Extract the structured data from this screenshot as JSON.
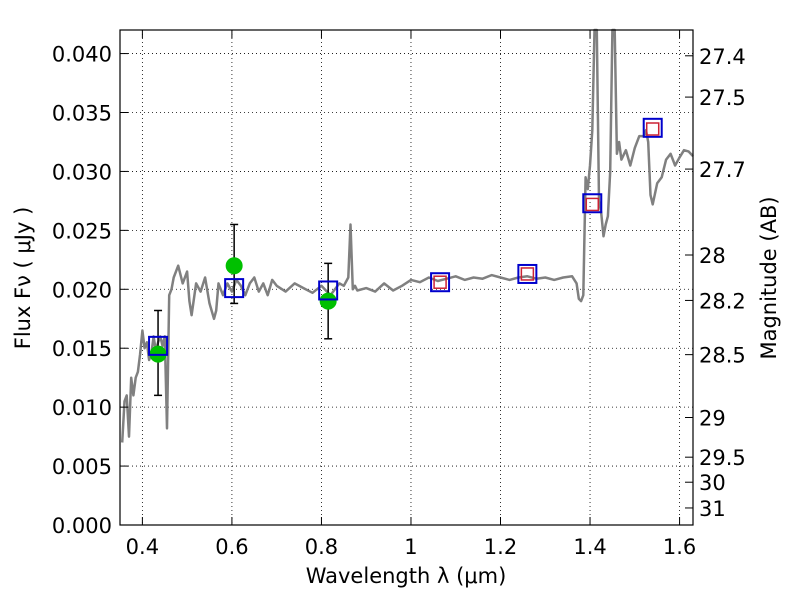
{
  "chart_data": {
    "type": "line",
    "xlabel": "Wavelength  λ (μm)",
    "ylabel": "Flux  Fν  ( μJy )",
    "y2label": "Magnitude (AB)",
    "xlim": [
      0.35,
      1.63
    ],
    "ylim": [
      0.0,
      0.042
    ],
    "grid": true,
    "x_ticks": [
      0.4,
      0.6,
      0.8,
      1.0,
      1.2,
      1.4,
      1.6
    ],
    "x_tick_labels": [
      "0.4",
      "0.6",
      "0.8",
      "1",
      "1.2",
      "1.4",
      "1.6"
    ],
    "y_ticks": [
      0.0,
      0.005,
      0.01,
      0.015,
      0.02,
      0.025,
      0.03,
      0.035,
      0.04
    ],
    "y_tick_labels": [
      "0.000",
      "0.005",
      "0.010",
      "0.015",
      "0.020",
      "0.025",
      "0.030",
      "0.035",
      "0.040"
    ],
    "y2_ticks": [
      {
        "mag": 27.4,
        "label": "27.4"
      },
      {
        "mag": 27.5,
        "label": "27.5"
      },
      {
        "mag": 27.7,
        "label": "27.7"
      },
      {
        "mag": 28.0,
        "label": "28"
      },
      {
        "mag": 28.2,
        "label": "28.2"
      },
      {
        "mag": 28.5,
        "label": "28.5"
      },
      {
        "mag": 29.0,
        "label": "29"
      },
      {
        "mag": 29.5,
        "label": "29.5"
      },
      {
        "mag": 30.0,
        "label": "30"
      },
      {
        "mag": 31.0,
        "label": "31"
      }
    ],
    "series": [
      {
        "kind": "line",
        "color": "#808080",
        "x": [
          0.355,
          0.36,
          0.365,
          0.37,
          0.375,
          0.38,
          0.385,
          0.39,
          0.395,
          0.4,
          0.405,
          0.41,
          0.415,
          0.42,
          0.425,
          0.43,
          0.435,
          0.44,
          0.445,
          0.45,
          0.455,
          0.46,
          0.465,
          0.47,
          0.48,
          0.49,
          0.5,
          0.505,
          0.51,
          0.52,
          0.53,
          0.54,
          0.55,
          0.56,
          0.565,
          0.57,
          0.58,
          0.59,
          0.6,
          0.61,
          0.62,
          0.63,
          0.64,
          0.65,
          0.66,
          0.67,
          0.68,
          0.69,
          0.7,
          0.72,
          0.74,
          0.76,
          0.78,
          0.8,
          0.82,
          0.84,
          0.85,
          0.86,
          0.865,
          0.87,
          0.875,
          0.88,
          0.9,
          0.92,
          0.94,
          0.96,
          0.98,
          1.0,
          1.02,
          1.04,
          1.06,
          1.08,
          1.1,
          1.12,
          1.14,
          1.16,
          1.18,
          1.2,
          1.22,
          1.24,
          1.26,
          1.28,
          1.3,
          1.32,
          1.34,
          1.36,
          1.37,
          1.375,
          1.38,
          1.385,
          1.39,
          1.395,
          1.4,
          1.405,
          1.41,
          1.415,
          1.42,
          1.425,
          1.43,
          1.435,
          1.44,
          1.445,
          1.45,
          1.455,
          1.46,
          1.465,
          1.47,
          1.48,
          1.49,
          1.5,
          1.51,
          1.52,
          1.525,
          1.53,
          1.535,
          1.54,
          1.55,
          1.56,
          1.57,
          1.58,
          1.59,
          1.6,
          1.61,
          1.62,
          1.63
        ],
        "y": [
          0.007,
          0.0105,
          0.011,
          0.0075,
          0.0125,
          0.011,
          0.0125,
          0.013,
          0.0145,
          0.0165,
          0.015,
          0.0155,
          0.014,
          0.0145,
          0.016,
          0.0148,
          0.0155,
          0.016,
          0.0152,
          0.016,
          0.0082,
          0.0195,
          0.02,
          0.021,
          0.022,
          0.0205,
          0.0215,
          0.019,
          0.0178,
          0.0205,
          0.0198,
          0.021,
          0.0188,
          0.0175,
          0.0182,
          0.0205,
          0.0195,
          0.0205,
          0.0198,
          0.0208,
          0.0203,
          0.0195,
          0.0205,
          0.021,
          0.0198,
          0.0205,
          0.0195,
          0.0208,
          0.0203,
          0.0198,
          0.0205,
          0.0201,
          0.0197,
          0.0203,
          0.0195,
          0.0205,
          0.0203,
          0.021,
          0.0255,
          0.02,
          0.0203,
          0.0199,
          0.0201,
          0.0198,
          0.0205,
          0.0199,
          0.0203,
          0.0208,
          0.0206,
          0.021,
          0.0207,
          0.0209,
          0.0211,
          0.0208,
          0.021,
          0.0209,
          0.0212,
          0.021,
          0.0208,
          0.021,
          0.0211,
          0.0209,
          0.021,
          0.0208,
          0.021,
          0.0211,
          0.0205,
          0.0192,
          0.019,
          0.0195,
          0.0295,
          0.0285,
          0.0305,
          0.0335,
          0.042,
          0.042,
          0.0275,
          0.0265,
          0.0245,
          0.0255,
          0.0262,
          0.03,
          0.042,
          0.042,
          0.0315,
          0.0325,
          0.031,
          0.0318,
          0.0305,
          0.032,
          0.033,
          0.033,
          0.0335,
          0.0325,
          0.028,
          0.0272,
          0.029,
          0.0295,
          0.031,
          0.0315,
          0.0305,
          0.0312,
          0.0318,
          0.0317,
          0.0313
        ]
      },
      {
        "kind": "observed",
        "color": "#00c000",
        "x": [
          0.435,
          0.605,
          0.815
        ],
        "y": [
          0.0145,
          0.022,
          0.019
        ],
        "yerr_low": [
          0.011,
          0.0188,
          0.0158
        ],
        "yerr_high": [
          0.0182,
          0.0255,
          0.0222
        ]
      },
      {
        "kind": "model-large",
        "color": "#0000cc",
        "x": [
          0.435,
          0.605,
          0.815,
          1.065,
          1.26,
          1.405,
          1.54
        ],
        "y": [
          0.0152,
          0.0201,
          0.0199,
          0.0206,
          0.0213,
          0.0273,
          0.0337
        ]
      },
      {
        "kind": "model-small",
        "color": "#cc2233",
        "x": [
          1.065,
          1.26,
          1.405,
          1.54
        ],
        "y": [
          0.0206,
          0.0213,
          0.0272,
          0.0336
        ]
      }
    ]
  }
}
